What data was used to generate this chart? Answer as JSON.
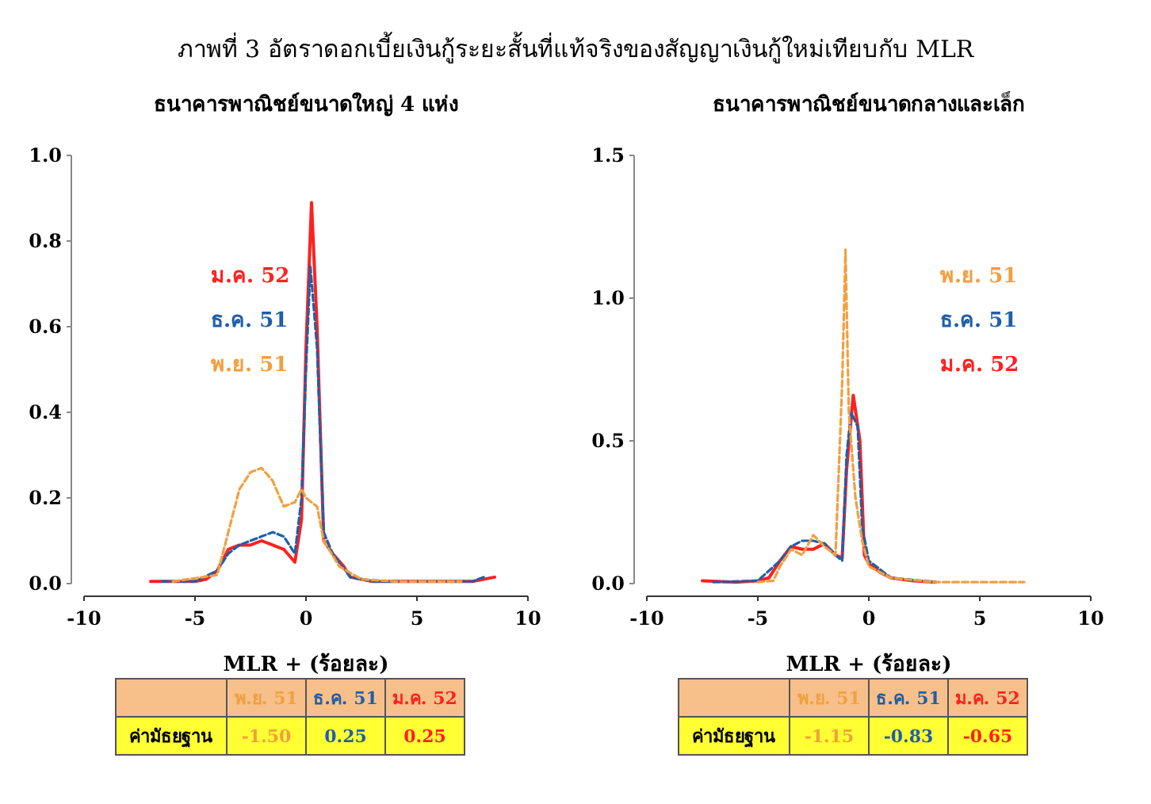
{
  "chart_data": [
    {
      "type": "line",
      "title": "ภาพที่ 3  อัตราดอกเบี้ยเงินกู้ระยะสั้นที่แท้จริงของสัญญาเงินกู้ใหม่เทียบกับ MLR",
      "subtitle": "ธนาคารพาณิชย์ขนาดใหญ่ 4 แห่ง",
      "xlabel": "MLR + (ร้อยละ)",
      "xlim": [
        -10,
        10
      ],
      "xticks": [
        -10,
        -5,
        0,
        5,
        10
      ],
      "ylim": [
        0,
        1
      ],
      "yticks": [
        {
          "value": 0,
          "label": "0.0"
        },
        {
          "value": 0.2,
          "label": "0.2"
        },
        {
          "value": 0.4,
          "label": "0.4"
        },
        {
          "value": 0.6,
          "label": "0.6"
        },
        {
          "value": 0.8,
          "label": "0.8"
        },
        {
          "value": 1,
          "label": "1.0"
        }
      ],
      "legend": "left",
      "grid": false,
      "series": [
        {
          "name": "พ.ย. 51",
          "color": "#f0a040",
          "line_style": "dashed",
          "x": [
            -6,
            -4,
            -3.5,
            -3,
            -2.5,
            -2,
            -1.5,
            -1,
            -0.5,
            -0.2,
            0,
            0.5,
            0.8,
            1.5,
            2.5,
            4,
            7
          ],
          "values": [
            0.005,
            0.02,
            0.12,
            0.22,
            0.26,
            0.27,
            0.24,
            0.18,
            0.19,
            0.22,
            0.2,
            0.18,
            0.1,
            0.04,
            0.01,
            0.005,
            0.005
          ]
        },
        {
          "name": "ธ.ค. 51",
          "color": "#1f5fa8",
          "line_style": "dashed",
          "x": [
            -6.5,
            -5,
            -4,
            -3.5,
            -3,
            -2.5,
            -2,
            -1.5,
            -1,
            -0.5,
            -0.2,
            0,
            0.2,
            0.5,
            0.8,
            1.2,
            2,
            3,
            7.5,
            8
          ],
          "values": [
            0.005,
            0.005,
            0.03,
            0.07,
            0.09,
            0.1,
            0.11,
            0.12,
            0.11,
            0.07,
            0.2,
            0.5,
            0.74,
            0.55,
            0.12,
            0.07,
            0.015,
            0.005,
            0.005,
            0.015
          ]
        },
        {
          "name": "ม.ค. 52",
          "color": "#ff2020",
          "line_style": "solid",
          "x": [
            -7,
            -6,
            -5,
            -4.5,
            -4,
            -3.5,
            -3,
            -2.5,
            -2,
            -1.5,
            -1,
            -0.5,
            -0.2,
            0,
            0.25,
            0.5,
            0.8,
            1.2,
            1.7,
            2,
            3,
            5,
            7,
            7.5,
            8,
            8.5
          ],
          "values": [
            0.005,
            0.005,
            0.005,
            0.01,
            0.03,
            0.08,
            0.09,
            0.09,
            0.1,
            0.09,
            0.08,
            0.05,
            0.15,
            0.55,
            0.89,
            0.6,
            0.1,
            0.07,
            0.04,
            0.015,
            0.005,
            0.005,
            0.005,
            0.005,
            0.01,
            0.015
          ]
        }
      ],
      "annotations": [
        "ค่ามัธยฐาน",
        "-1.50",
        "0.25",
        "0.25"
      ]
    },
    {
      "type": "line",
      "subtitle": "ธนาคารพาณิชย์ขนาดกลางและเล็ก",
      "xlabel": "MLR + (ร้อยละ)",
      "xlim": [
        -10,
        10
      ],
      "xticks": [
        -10,
        -5,
        0,
        5,
        10
      ],
      "ylim": [
        0,
        1.5
      ],
      "yticks": [
        {
          "value": 0,
          "label": "0.0"
        },
        {
          "value": 0.5,
          "label": "0.5"
        },
        {
          "value": 1,
          "label": "1.0"
        },
        {
          "value": 1.5,
          "label": "1.5"
        }
      ],
      "legend": "right",
      "grid": false,
      "series": [
        {
          "name": "พ.ย. 51",
          "color": "#f0a040",
          "line_style": "dashed",
          "x": [
            -5,
            -4.3,
            -4,
            -3.5,
            -3,
            -2.5,
            -2,
            -1.5,
            -1.2,
            -1.05,
            -0.9,
            -0.6,
            -0.3,
            0,
            1,
            3,
            5,
            7
          ],
          "values": [
            0.005,
            0.01,
            0.06,
            0.12,
            0.1,
            0.17,
            0.13,
            0.1,
            0.7,
            1.17,
            0.6,
            0.3,
            0.15,
            0.06,
            0.02,
            0.005,
            0.005,
            0.005
          ]
        },
        {
          "name": "ธ.ค. 51",
          "color": "#1f5fa8",
          "line_style": "dashed",
          "x": [
            -7,
            -5,
            -4,
            -3.5,
            -3,
            -2.5,
            -2,
            -1.5,
            -1.2,
            -1,
            -0.8,
            -0.5,
            -0.3,
            0,
            1,
            3
          ],
          "values": [
            0.005,
            0.01,
            0.08,
            0.13,
            0.15,
            0.15,
            0.14,
            0.1,
            0.08,
            0.45,
            0.6,
            0.55,
            0.2,
            0.08,
            0.02,
            0.005
          ]
        },
        {
          "name": "ม.ค. 52",
          "color": "#ff2020",
          "line_style": "solid",
          "x": [
            -7.5,
            -6,
            -5,
            -4.5,
            -4,
            -3.5,
            -3,
            -2.5,
            -2,
            -1.5,
            -1.2,
            -1,
            -0.7,
            -0.4,
            -0.2,
            0,
            0.5,
            1,
            2,
            3
          ],
          "values": [
            0.01,
            0.005,
            0.01,
            0.02,
            0.08,
            0.13,
            0.12,
            0.12,
            0.14,
            0.1,
            0.09,
            0.4,
            0.66,
            0.5,
            0.1,
            0.07,
            0.04,
            0.02,
            0.01,
            0.005
          ]
        }
      ],
      "annotations": [
        "ค่ามัธยฐาน",
        "-1.15",
        "-0.83",
        "-0.65"
      ]
    }
  ]
}
